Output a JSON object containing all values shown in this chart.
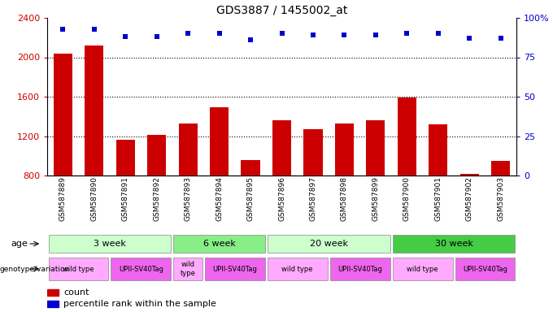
{
  "title": "GDS3887 / 1455002_at",
  "samples": [
    "GSM587889",
    "GSM587890",
    "GSM587891",
    "GSM587892",
    "GSM587893",
    "GSM587894",
    "GSM587895",
    "GSM587896",
    "GSM587897",
    "GSM587898",
    "GSM587899",
    "GSM587900",
    "GSM587901",
    "GSM587902",
    "GSM587903"
  ],
  "counts": [
    2040,
    2120,
    1160,
    1210,
    1330,
    1490,
    960,
    1360,
    1270,
    1330,
    1360,
    1590,
    1320,
    820,
    950
  ],
  "percentiles": [
    93,
    93,
    88,
    88,
    90,
    90,
    86,
    90,
    89,
    89,
    89,
    90,
    90,
    87,
    87
  ],
  "ylim_left": [
    800,
    2400
  ],
  "ylim_right": [
    0,
    100
  ],
  "yticks_left": [
    800,
    1200,
    1600,
    2000,
    2400
  ],
  "yticks_right": [
    0,
    25,
    50,
    75,
    100
  ],
  "bar_color": "#cc0000",
  "scatter_color": "#0000cc",
  "bar_width": 0.6,
  "age_groups": [
    {
      "label": "3 week",
      "start": 0,
      "end": 4,
      "color": "#ccffcc"
    },
    {
      "label": "6 week",
      "start": 4,
      "end": 7,
      "color": "#88ee88"
    },
    {
      "label": "20 week",
      "start": 7,
      "end": 11,
      "color": "#ccffcc"
    },
    {
      "label": "30 week",
      "start": 11,
      "end": 15,
      "color": "#44cc44"
    }
  ],
  "genotype_groups": [
    {
      "label": "wild type",
      "start": 0,
      "end": 2,
      "color": "#ffaaff"
    },
    {
      "label": "UPII-SV40Tag",
      "start": 2,
      "end": 4,
      "color": "#ee66ee"
    },
    {
      "label": "wild\ntype",
      "start": 4,
      "end": 5,
      "color": "#ffaaff"
    },
    {
      "label": "UPII-SV40Tag",
      "start": 5,
      "end": 7,
      "color": "#ee66ee"
    },
    {
      "label": "wild type",
      "start": 7,
      "end": 9,
      "color": "#ffaaff"
    },
    {
      "label": "UPII-SV40Tag",
      "start": 9,
      "end": 11,
      "color": "#ee66ee"
    },
    {
      "label": "wild type",
      "start": 11,
      "end": 13,
      "color": "#ffaaff"
    },
    {
      "label": "UPII-SV40Tag",
      "start": 13,
      "end": 15,
      "color": "#ee66ee"
    }
  ],
  "legend_count_color": "#cc0000",
  "legend_percentile_color": "#0000cc",
  "bg_color": "#ffffff"
}
